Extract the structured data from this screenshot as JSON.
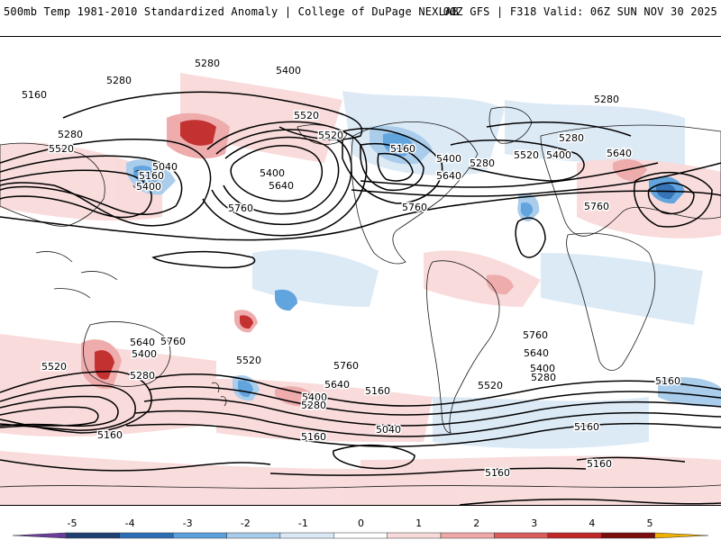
{
  "header": {
    "left_title": "500mb Temp 1981-2010 Standardized Anomaly | College of DuPage NEXLAB",
    "right_title": "00Z GFS | F318 Valid: 06Z SUN NOV 30 2025"
  },
  "colors": {
    "ocean_bg": "#ffffff",
    "contour": "#000000",
    "land_outline": "#1a1a1a"
  },
  "legend": {
    "ticks": [
      "-5",
      "-4",
      "-3",
      "-2",
      "-1",
      "0",
      "1",
      "2",
      "3",
      "4",
      "5"
    ],
    "colors": [
      "#6a3d9a",
      "#1f3f73",
      "#2c6db5",
      "#5aa0dc",
      "#a6cbeb",
      "#dbe9f6",
      "#ffffff",
      "#f9dada",
      "#eea8a8",
      "#d95d5d",
      "#c02727",
      "#7a0d0d",
      "#f0b000"
    ]
  },
  "contour_labels": [
    {
      "text": "5280"
    },
    {
      "text": "5400"
    },
    {
      "text": "5280"
    },
    {
      "text": "5160"
    },
    {
      "text": "5520"
    },
    {
      "text": "5280"
    },
    {
      "text": "5520"
    },
    {
      "text": "5040"
    },
    {
      "text": "5160"
    },
    {
      "text": "5400"
    },
    {
      "text": "5400"
    },
    {
      "text": "5640"
    },
    {
      "text": "5760"
    },
    {
      "text": "5760"
    },
    {
      "text": "5520"
    },
    {
      "text": "5160"
    },
    {
      "text": "5400"
    },
    {
      "text": "5280"
    },
    {
      "text": "5640"
    },
    {
      "text": "5520"
    },
    {
      "text": "5760"
    },
    {
      "text": "5280"
    },
    {
      "text": "5400"
    },
    {
      "text": "5280"
    },
    {
      "text": "5640"
    },
    {
      "text": "5760"
    },
    {
      "text": "5640"
    },
    {
      "text": "5760"
    },
    {
      "text": "5400"
    },
    {
      "text": "5520"
    },
    {
      "text": "5280"
    },
    {
      "text": "5520"
    },
    {
      "text": "5760"
    },
    {
      "text": "5640"
    },
    {
      "text": "5400"
    },
    {
      "text": "5280"
    },
    {
      "text": "5160"
    },
    {
      "text": "5040"
    },
    {
      "text": "5160"
    },
    {
      "text": "5160"
    },
    {
      "text": "5760"
    },
    {
      "text": "5640"
    },
    {
      "text": "5520"
    },
    {
      "text": "5400"
    },
    {
      "text": "5280"
    },
    {
      "text": "5160"
    },
    {
      "text": "5160"
    },
    {
      "text": "5160"
    },
    {
      "text": "5160"
    }
  ]
}
